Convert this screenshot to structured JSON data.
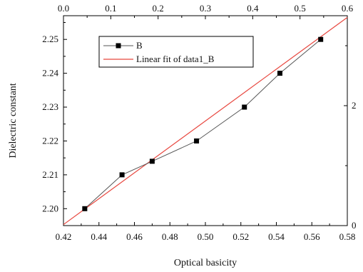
{
  "chart_data": {
    "type": "line",
    "xlabel": "Optical basicity",
    "ylabel": "Dielectric constant",
    "x": [
      0.432,
      0.453,
      0.47,
      0.495,
      0.522,
      0.542,
      0.565
    ],
    "series": [
      {
        "name": "B",
        "values": [
          2.2,
          2.21,
          2.214,
          2.22,
          2.23,
          2.24,
          2.25
        ],
        "color": "#555555",
        "marker": "square",
        "marker_color": "#000000"
      },
      {
        "name": "Linear fit of data1_B",
        "type": "line",
        "x": [
          0.42,
          0.58
        ],
        "values": [
          2.1953,
          2.2565
        ],
        "color": "#e8473f"
      }
    ],
    "xlim": [
      0.42,
      0.58
    ],
    "ylim": [
      2.195,
      2.257
    ],
    "x_ticks": [
      0.42,
      0.44,
      0.46,
      0.48,
      0.5,
      0.52,
      0.54,
      0.56,
      0.58
    ],
    "x_tick_labels": [
      "0.42",
      "0.44",
      "0.46",
      "0.48",
      "0.50",
      "0.52",
      "0.54",
      "0.56",
      "0.58"
    ],
    "y_ticks": [
      2.2,
      2.21,
      2.22,
      2.23,
      2.24,
      2.25
    ],
    "y_tick_labels": [
      "2.20",
      "2.21",
      "2.22",
      "2.23",
      "2.24",
      "2.25"
    ],
    "top_axis": {
      "lim": [
        0.0,
        0.6
      ],
      "ticks": [
        0.0,
        0.1,
        0.2,
        0.3,
        0.4,
        0.5,
        0.6
      ],
      "tick_labels": [
        "0.0",
        "0.1",
        "0.2",
        "0.3",
        "0.4",
        "0.5",
        "0.6"
      ]
    },
    "right_axis": {
      "lim": [
        0,
        3.5
      ],
      "ticks": [
        0,
        2
      ],
      "tick_labels": [
        "0",
        "2"
      ]
    },
    "legend": {
      "placement": "top-left",
      "entries": [
        "B",
        "Linear fit of data1_B"
      ]
    },
    "grid": false
  }
}
